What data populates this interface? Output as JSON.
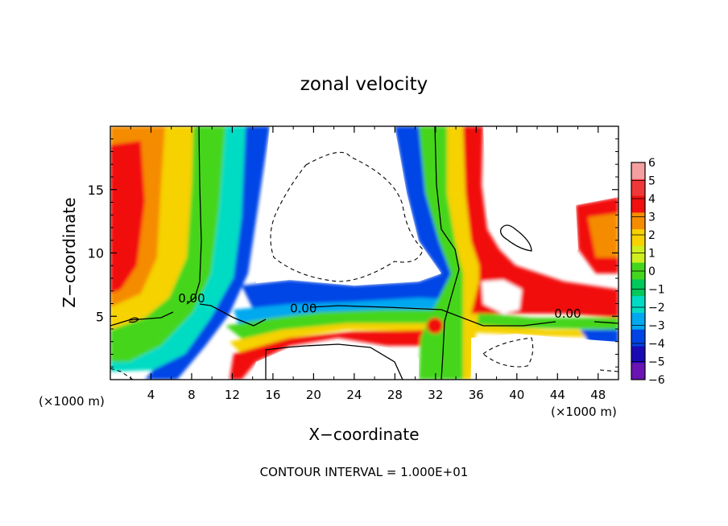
{
  "chart_data": {
    "type": "heatmap",
    "title": "zonal velocity",
    "xlabel": "X−coordinate",
    "ylabel": "Z−coordinate",
    "x_unit_left": "(×1000 m)",
    "x_unit_right": "(×1000 m)",
    "footnote": "CONTOUR INTERVAL = 1.000E+01",
    "xlim": [
      0,
      50
    ],
    "ylim": [
      0,
      20
    ],
    "x_ticks": [
      4,
      8,
      12,
      16,
      20,
      24,
      28,
      32,
      36,
      40,
      44,
      48
    ],
    "x_tick_labels": [
      "4",
      "8",
      "12",
      "16",
      "20",
      "24",
      "28",
      "32",
      "36",
      "40",
      "44",
      "48"
    ],
    "y_ticks": [
      5,
      10,
      15
    ],
    "y_tick_labels": [
      "5",
      "10",
      "15"
    ],
    "colorbar": {
      "levels": [
        6,
        5,
        4,
        3,
        2,
        1,
        0,
        -1,
        -2,
        -3,
        -4,
        -5,
        -6
      ],
      "labels": [
        "6",
        "5",
        "4",
        "3",
        "2",
        "1",
        "0",
        "−1",
        "−2",
        "−3",
        "−4",
        "−5",
        "−6"
      ],
      "colors": [
        "#f4a0a0",
        "#f03838",
        "#f21010",
        "#f58c00",
        "#f5d200",
        "#cfee20",
        "#44d61e",
        "#00c85a",
        "#00dcc4",
        "#00a8f0",
        "#0044e6",
        "#1a0ab4",
        "#6a14b4"
      ]
    },
    "contour_labels": [
      {
        "text": "0.00",
        "x": 8,
        "y": 6.1
      },
      {
        "text": "0.00",
        "x": 19,
        "y": 5.3
      },
      {
        "text": "0.00",
        "x": 45,
        "y": 4.9
      }
    ]
  }
}
